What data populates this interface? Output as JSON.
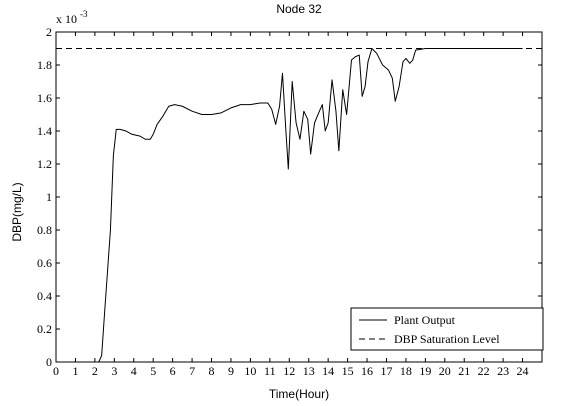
{
  "chart_data": {
    "type": "line",
    "title": "Node 32",
    "xlabel": "Time(Hour)",
    "ylabel": "DBP(mg/L)",
    "y_multiplier_label": "x 10",
    "y_multiplier_exponent": "-3",
    "xlim": [
      0,
      25
    ],
    "ylim": [
      0,
      2
    ],
    "x_ticks": [
      "0",
      "1",
      "2",
      "3",
      "4",
      "5",
      "6",
      "7",
      "8",
      "9",
      "10",
      "11",
      "12",
      "13",
      "14",
      "15",
      "16",
      "17",
      "18",
      "19",
      "20",
      "21",
      "22",
      "23",
      "24"
    ],
    "y_ticks": [
      "0",
      "0.2",
      "0.4",
      "0.6",
      "0.8",
      "1",
      "1.2",
      "1.4",
      "1.6",
      "1.8",
      "2"
    ],
    "grid": false,
    "legend_position": "bottom-right",
    "series": [
      {
        "name": "Plant Output",
        "style": "solid",
        "color": "#000000",
        "points": [
          [
            0,
            0
          ],
          [
            2.2,
            0
          ],
          [
            2.35,
            0.04
          ],
          [
            2.5,
            0.3
          ],
          [
            2.65,
            0.55
          ],
          [
            2.8,
            0.8
          ],
          [
            2.95,
            1.25
          ],
          [
            3.1,
            1.41
          ],
          [
            3.3,
            1.41
          ],
          [
            3.6,
            1.4
          ],
          [
            3.9,
            1.38
          ],
          [
            4.3,
            1.37
          ],
          [
            4.6,
            1.35
          ],
          [
            4.85,
            1.35
          ],
          [
            5.0,
            1.38
          ],
          [
            5.2,
            1.44
          ],
          [
            5.5,
            1.49
          ],
          [
            5.8,
            1.55
          ],
          [
            6.1,
            1.56
          ],
          [
            6.5,
            1.55
          ],
          [
            7.0,
            1.52
          ],
          [
            7.5,
            1.5
          ],
          [
            8.0,
            1.5
          ],
          [
            8.5,
            1.51
          ],
          [
            9.0,
            1.54
          ],
          [
            9.5,
            1.56
          ],
          [
            10.0,
            1.56
          ],
          [
            10.5,
            1.57
          ],
          [
            10.9,
            1.57
          ],
          [
            11.1,
            1.53
          ],
          [
            11.3,
            1.44
          ],
          [
            11.5,
            1.55
          ],
          [
            11.65,
            1.75
          ],
          [
            11.8,
            1.45
          ],
          [
            11.95,
            1.17
          ],
          [
            12.15,
            1.7
          ],
          [
            12.35,
            1.45
          ],
          [
            12.55,
            1.35
          ],
          [
            12.75,
            1.52
          ],
          [
            12.95,
            1.47
          ],
          [
            13.1,
            1.26
          ],
          [
            13.3,
            1.45
          ],
          [
            13.55,
            1.52
          ],
          [
            13.7,
            1.56
          ],
          [
            13.85,
            1.4
          ],
          [
            14.0,
            1.45
          ],
          [
            14.2,
            1.71
          ],
          [
            14.4,
            1.52
          ],
          [
            14.55,
            1.28
          ],
          [
            14.75,
            1.65
          ],
          [
            14.95,
            1.5
          ],
          [
            15.2,
            1.83
          ],
          [
            15.4,
            1.85
          ],
          [
            15.6,
            1.86
          ],
          [
            15.75,
            1.61
          ],
          [
            15.9,
            1.67
          ],
          [
            16.05,
            1.82
          ],
          [
            16.25,
            1.9
          ],
          [
            16.5,
            1.87
          ],
          [
            16.8,
            1.8
          ],
          [
            17.1,
            1.77
          ],
          [
            17.3,
            1.72
          ],
          [
            17.45,
            1.58
          ],
          [
            17.65,
            1.67
          ],
          [
            17.85,
            1.82
          ],
          [
            18.0,
            1.84
          ],
          [
            18.2,
            1.81
          ],
          [
            18.35,
            1.83
          ],
          [
            18.5,
            1.89
          ],
          [
            19.0,
            1.9
          ],
          [
            19.5,
            1.9
          ],
          [
            20.0,
            1.9
          ],
          [
            21.0,
            1.9
          ],
          [
            22.0,
            1.9
          ],
          [
            23.0,
            1.9
          ],
          [
            24.0,
            1.9
          ]
        ]
      },
      {
        "name": "DBP Saturation Level",
        "style": "dashed",
        "color": "#000000",
        "points": [
          [
            0,
            1.9
          ],
          [
            25,
            1.9
          ]
        ]
      }
    ]
  }
}
